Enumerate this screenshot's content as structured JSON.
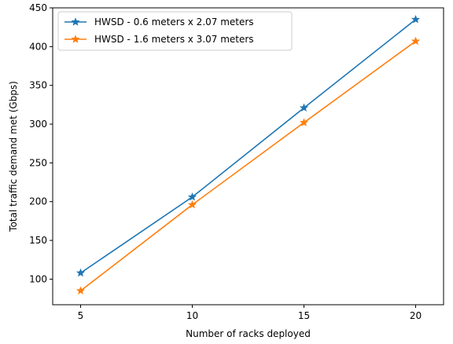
{
  "chart_data": {
    "type": "line",
    "title": "",
    "xlabel": "Number of racks deployed",
    "ylabel": "Total traffic demand met (Gbps)",
    "x": [
      5,
      10,
      15,
      20
    ],
    "xlim": [
      3.75,
      21.25
    ],
    "ylim": [
      67,
      450
    ],
    "xticks": [
      5,
      10,
      15,
      20
    ],
    "yticks": [
      100,
      150,
      200,
      250,
      300,
      350,
      400,
      450
    ],
    "grid": false,
    "legend_position": "top-left",
    "marker": "star",
    "series": [
      {
        "name": "HWSD - 0.6 meters x 2.07 meters",
        "color": "#1f77b4",
        "values": [
          108,
          206,
          321,
          435
        ]
      },
      {
        "name": "HWSD - 1.6 meters x 3.07 meters",
        "color": "#ff7f0e",
        "values": [
          85,
          196,
          302,
          407
        ]
      }
    ]
  }
}
